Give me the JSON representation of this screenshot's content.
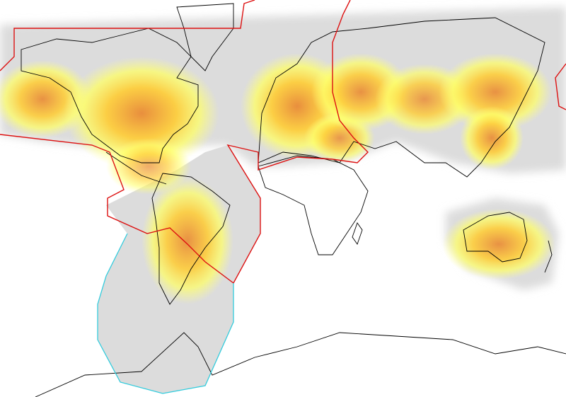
{
  "map": {
    "projection": "mercator",
    "colors": {
      "background": "#ffffff",
      "coverage_gray": "#dcdcdc",
      "heat_low": "#ffff66",
      "heat_mid": "#ffcc33",
      "heat_high": "#ee8833",
      "boundary_red": "#dd1111",
      "boundary_cyan": "#33ccdd",
      "coastline": "#000000"
    },
    "heat_spots": [
      {
        "region": "alaska",
        "intensity": 0.8
      },
      {
        "region": "north-america",
        "intensity": 0.9
      },
      {
        "region": "central-america",
        "intensity": 0.5
      },
      {
        "region": "south-america",
        "intensity": 0.8
      },
      {
        "region": "europe",
        "intensity": 0.9
      },
      {
        "region": "middle-east",
        "intensity": 0.7
      },
      {
        "region": "russia-west",
        "intensity": 0.8
      },
      {
        "region": "russia-central",
        "intensity": 0.7
      },
      {
        "region": "russia-east",
        "intensity": 0.8
      },
      {
        "region": "japan-korea",
        "intensity": 0.8
      },
      {
        "region": "australia",
        "intensity": 0.8
      }
    ]
  }
}
